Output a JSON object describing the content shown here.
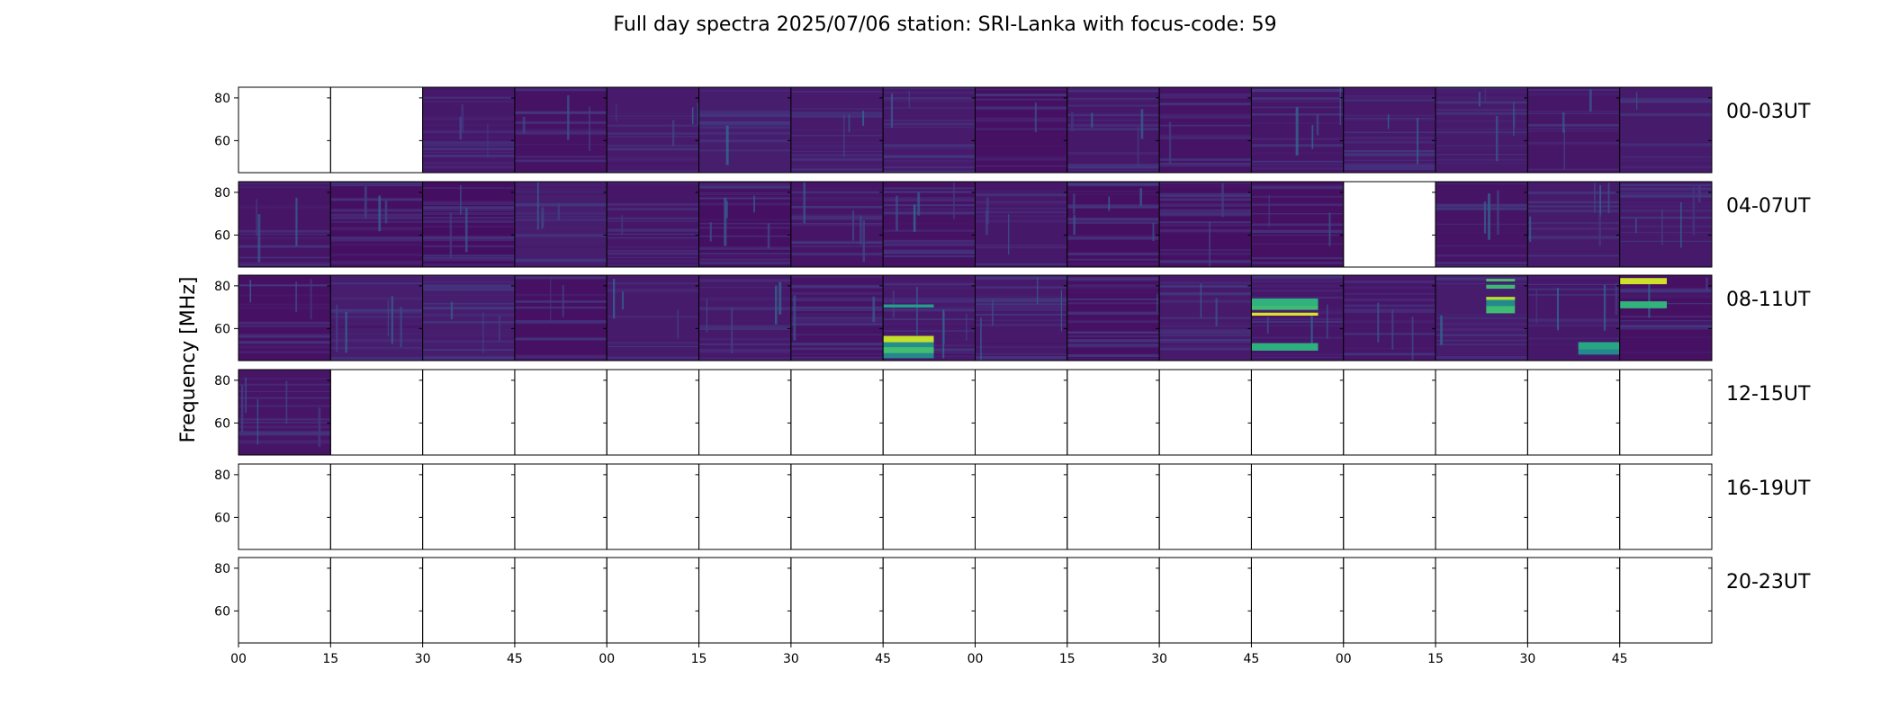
{
  "chart_data": {
    "type": "heatmap",
    "title": "Full day spectra 2025/07/06 station: SRI-Lanka with focus-code: 59",
    "ylabel": "Frequency [MHz]",
    "xlabel": "",
    "colormap": "viridis",
    "background_colors": {
      "low": "#440154",
      "mid": "#21918c",
      "high": "#fde725"
    },
    "ylim": [
      45,
      85
    ],
    "yticks": [
      60,
      80
    ],
    "xtick_labels": [
      "00",
      "15",
      "30",
      "45",
      "00",
      "15",
      "30",
      "45",
      "00",
      "15",
      "30",
      "45",
      "00",
      "15",
      "30",
      "45"
    ],
    "panels_per_row": 16,
    "panel_minutes": 15,
    "rows": [
      {
        "label": "00-03UT",
        "status": [
          "empty",
          "empty",
          "data",
          "data",
          "data",
          "data",
          "data",
          "data",
          "data",
          "data",
          "data",
          "data",
          "data",
          "data",
          "data",
          "data"
        ]
      },
      {
        "label": "04-07UT",
        "status": [
          "data",
          "data",
          "data",
          "data",
          "data",
          "data",
          "data",
          "data",
          "data",
          "data",
          "data",
          "data",
          "empty",
          "data",
          "data",
          "data"
        ]
      },
      {
        "label": "08-11UT",
        "status": [
          "data",
          "data",
          "data",
          "data",
          "data",
          "data",
          "data",
          "data",
          "data",
          "data",
          "data",
          "data",
          "data",
          "data",
          "data",
          "data"
        ]
      },
      {
        "label": "12-15UT",
        "status": [
          "data",
          "empty",
          "empty",
          "empty",
          "empty",
          "empty",
          "empty",
          "empty",
          "empty",
          "empty",
          "empty",
          "empty",
          "empty",
          "empty",
          "empty",
          "empty"
        ]
      },
      {
        "label": "16-19UT",
        "status": [
          "empty",
          "empty",
          "empty",
          "empty",
          "empty",
          "empty",
          "empty",
          "empty",
          "empty",
          "empty",
          "empty",
          "empty",
          "empty",
          "empty",
          "empty",
          "empty"
        ]
      },
      {
        "label": "20-23UT",
        "status": [
          "empty",
          "empty",
          "empty",
          "empty",
          "empty",
          "empty",
          "empty",
          "empty",
          "empty",
          "empty",
          "empty",
          "empty",
          "empty",
          "empty",
          "empty",
          "empty"
        ]
      }
    ]
  }
}
